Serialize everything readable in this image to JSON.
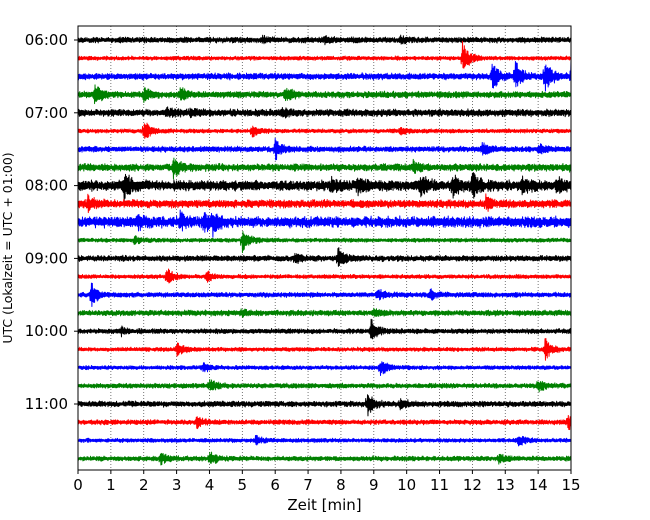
{
  "chart_data": {
    "type": "line",
    "subtype": "helicorder",
    "title": "",
    "xlabel": "Zeit  [min]",
    "ylabel": "UTC (Lokalzeit = UTC + 01:00)",
    "xlim": [
      0,
      15
    ],
    "x_ticks": [
      "0",
      "1",
      "2",
      "3",
      "4",
      "5",
      "6",
      "7",
      "8",
      "9",
      "10",
      "11",
      "12",
      "13",
      "14",
      "15"
    ],
    "y_ticks": [
      "06:00",
      "07:00",
      "08:00",
      "09:00",
      "10:00",
      "11:00"
    ],
    "grid": "vertical-dotted",
    "legend": "none",
    "trace_colors": [
      "#000000",
      "#ff0000",
      "#0000ff",
      "#008000"
    ],
    "traces": [
      {
        "start": "06:00",
        "amplitude": 0.35,
        "events": [
          [
            5.6,
            0.4
          ],
          [
            7.5,
            0.5
          ],
          [
            9.8,
            0.4
          ]
        ]
      },
      {
        "start": "06:15",
        "amplitude": 0.25,
        "events": [
          [
            11.7,
            2.2
          ]
        ]
      },
      {
        "start": "06:30",
        "amplitude": 0.4,
        "events": [
          [
            12.6,
            1.8
          ],
          [
            13.3,
            2.0
          ],
          [
            14.2,
            2.2
          ],
          [
            15.0,
            2.0
          ]
        ]
      },
      {
        "start": "06:45",
        "amplitude": 0.4,
        "events": [
          [
            0.5,
            1.5
          ],
          [
            2.0,
            0.8
          ],
          [
            3.1,
            1.1
          ],
          [
            6.3,
            1.0
          ]
        ]
      },
      {
        "start": "07:00",
        "amplitude": 0.45,
        "events": [
          [
            2.7,
            0.5
          ],
          [
            3.4,
            0.4
          ],
          [
            6.2,
            0.5
          ]
        ]
      },
      {
        "start": "07:15",
        "amplitude": 0.25,
        "events": [
          [
            2.0,
            1.5
          ],
          [
            5.3,
            1.0
          ],
          [
            9.8,
            0.5
          ]
        ]
      },
      {
        "start": "07:30",
        "amplitude": 0.35,
        "events": [
          [
            6.0,
            1.5
          ],
          [
            12.3,
            1.0
          ],
          [
            14.0,
            0.8
          ]
        ]
      },
      {
        "start": "07:45",
        "amplitude": 0.45,
        "events": [
          [
            2.9,
            1.5
          ],
          [
            10.2,
            0.8
          ],
          [
            15.0,
            0.8
          ]
        ]
      },
      {
        "start": "08:00",
        "amplitude": 0.65,
        "events": [
          [
            1.4,
            1.8
          ],
          [
            7.7,
            0.8
          ],
          [
            8.5,
            1.0
          ],
          [
            10.4,
            1.5
          ],
          [
            11.4,
            1.6
          ],
          [
            12.0,
            1.5
          ],
          [
            13.5,
            0.9
          ],
          [
            14.6,
            1.0
          ]
        ]
      },
      {
        "start": "08:15",
        "amplitude": 0.5,
        "events": [
          [
            0.3,
            1.0
          ],
          [
            12.4,
            0.9
          ]
        ]
      },
      {
        "start": "08:30",
        "amplitude": 0.7,
        "events": [
          [
            1.8,
            0.7
          ],
          [
            3.1,
            1.0
          ],
          [
            3.8,
            1.2
          ],
          [
            4.1,
            1.2
          ]
        ]
      },
      {
        "start": "08:45",
        "amplitude": 0.25,
        "events": [
          [
            5.0,
            1.8
          ],
          [
            1.7,
            0.5
          ]
        ]
      },
      {
        "start": "09:00",
        "amplitude": 0.35,
        "events": [
          [
            7.9,
            1.6
          ],
          [
            6.6,
            0.6
          ]
        ]
      },
      {
        "start": "09:15",
        "amplitude": 0.25,
        "events": [
          [
            2.7,
            1.2
          ],
          [
            3.9,
            0.8
          ]
        ]
      },
      {
        "start": "09:30",
        "amplitude": 0.3,
        "events": [
          [
            0.4,
            1.8
          ],
          [
            9.1,
            0.8
          ],
          [
            10.7,
            0.8
          ]
        ]
      },
      {
        "start": "09:45",
        "amplitude": 0.35,
        "events": [
          [
            5.0,
            0.5
          ],
          [
            9.0,
            0.5
          ]
        ]
      },
      {
        "start": "10:00",
        "amplitude": 0.3,
        "events": [
          [
            8.9,
            1.8
          ],
          [
            1.3,
            0.6
          ]
        ]
      },
      {
        "start": "10:15",
        "amplitude": 0.25,
        "events": [
          [
            3.0,
            1.0
          ],
          [
            14.2,
            1.6
          ]
        ]
      },
      {
        "start": "10:30",
        "amplitude": 0.25,
        "events": [
          [
            9.2,
            1.1
          ],
          [
            3.8,
            0.6
          ]
        ]
      },
      {
        "start": "10:45",
        "amplitude": 0.3,
        "events": [
          [
            4.0,
            1.0
          ],
          [
            14.0,
            0.8
          ]
        ]
      },
      {
        "start": "11:00",
        "amplitude": 0.35,
        "events": [
          [
            8.8,
            1.6
          ],
          [
            9.8,
            0.7
          ]
        ]
      },
      {
        "start": "11:15",
        "amplitude": 0.3,
        "events": [
          [
            3.6,
            0.8
          ],
          [
            14.9,
            1.0
          ]
        ]
      },
      {
        "start": "11:30",
        "amplitude": 0.25,
        "events": [
          [
            5.4,
            0.6
          ],
          [
            13.4,
            0.7
          ]
        ]
      },
      {
        "start": "11:45",
        "amplitude": 0.3,
        "events": [
          [
            2.5,
            0.8
          ],
          [
            4.0,
            1.0
          ],
          [
            12.8,
            0.6
          ]
        ]
      }
    ]
  }
}
